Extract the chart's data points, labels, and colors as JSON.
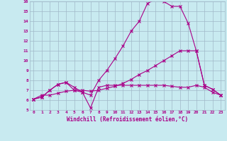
{
  "xlabel": "Windchill (Refroidissement éolien,°C)",
  "bg_color": "#c8eaf0",
  "grid_color": "#a0b8c8",
  "line_color": "#aa0088",
  "xmin": 0,
  "xmax": 23,
  "ymin": 5,
  "ymax": 16,
  "series": [
    [
      6.1,
      6.3,
      7.0,
      7.6,
      7.8,
      7.3,
      6.8,
      5.2,
      7.3,
      7.5,
      7.5,
      7.5,
      7.5,
      7.5,
      7.5,
      7.5,
      7.5,
      7.4,
      7.3,
      7.3,
      7.5,
      7.3,
      6.8,
      6.5
    ],
    [
      6.1,
      6.3,
      7.0,
      7.6,
      7.8,
      7.0,
      6.8,
      6.5,
      8.0,
      9.0,
      10.2,
      11.5,
      13.0,
      14.0,
      15.8,
      16.2,
      16.0,
      15.5,
      15.5,
      13.8,
      11.0,
      7.5,
      7.1,
      6.5
    ],
    [
      6.1,
      6.5,
      6.5,
      6.7,
      6.9,
      7.0,
      7.0,
      6.9,
      7.0,
      7.2,
      7.4,
      7.7,
      8.1,
      8.6,
      9.0,
      9.5,
      10.0,
      10.5,
      11.0,
      11.0,
      11.0,
      7.5,
      7.1,
      6.5
    ]
  ]
}
